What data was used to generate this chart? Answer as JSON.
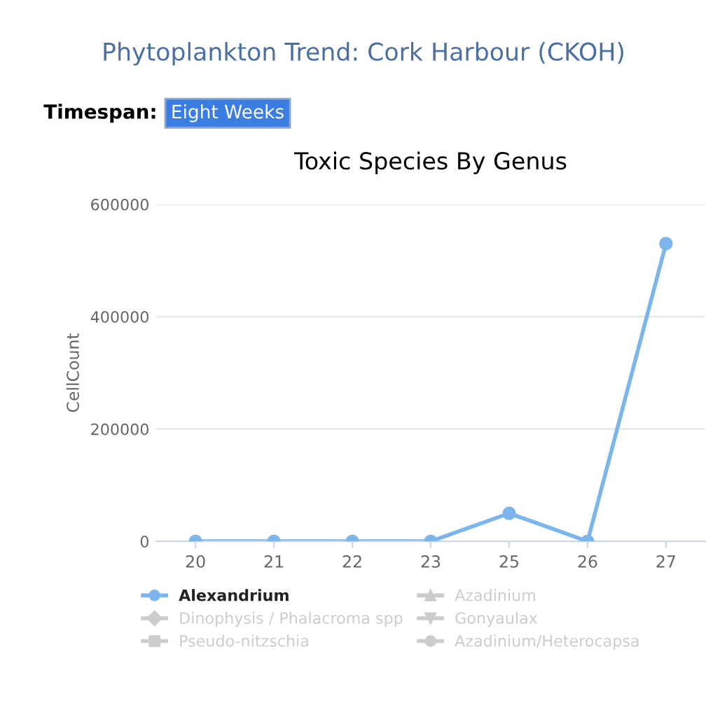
{
  "chart_data": {
    "type": "line",
    "title": "Phytoplankton Trend: Cork Harbour (CKOH)",
    "subtitle": "Toxic Species By Genus",
    "annotations": [
      "Timespan:",
      "Eight Weeks"
    ],
    "ylabel": "CellCount",
    "categories": [
      "20",
      "21",
      "22",
      "23",
      "25",
      "26",
      "27"
    ],
    "series": [
      {
        "name": "Alexandrium",
        "color": "#7cb5ec",
        "marker": "circle",
        "values": [
          0,
          0,
          0,
          0,
          50000,
          0,
          530000
        ]
      },
      {
        "name": "Dinophysis / Phalacroma spp",
        "color": "#cccccc",
        "marker": "diamond",
        "values": [
          null,
          null,
          null,
          null,
          null,
          null,
          null
        ]
      },
      {
        "name": "Pseudo-nitzschia",
        "color": "#cccccc",
        "marker": "square",
        "values": [
          null,
          null,
          null,
          null,
          null,
          null,
          null
        ]
      },
      {
        "name": "Azadinium",
        "color": "#cccccc",
        "marker": "triangle",
        "values": [
          null,
          null,
          null,
          null,
          null,
          null,
          null
        ]
      },
      {
        "name": "Gonyaulax",
        "color": "#cccccc",
        "marker": "triangle_down",
        "values": [
          null,
          null,
          null,
          null,
          null,
          null,
          null
        ]
      },
      {
        "name": "Azadinium/Heterocapsa",
        "color": "#cccccc",
        "marker": "circle",
        "values": [
          null,
          null,
          null,
          null,
          null,
          null,
          null
        ]
      }
    ],
    "ylim": [
      0,
      600000
    ],
    "yticks": [
      0,
      200000,
      400000,
      600000
    ],
    "grid": "y",
    "legend": "bottom"
  }
}
